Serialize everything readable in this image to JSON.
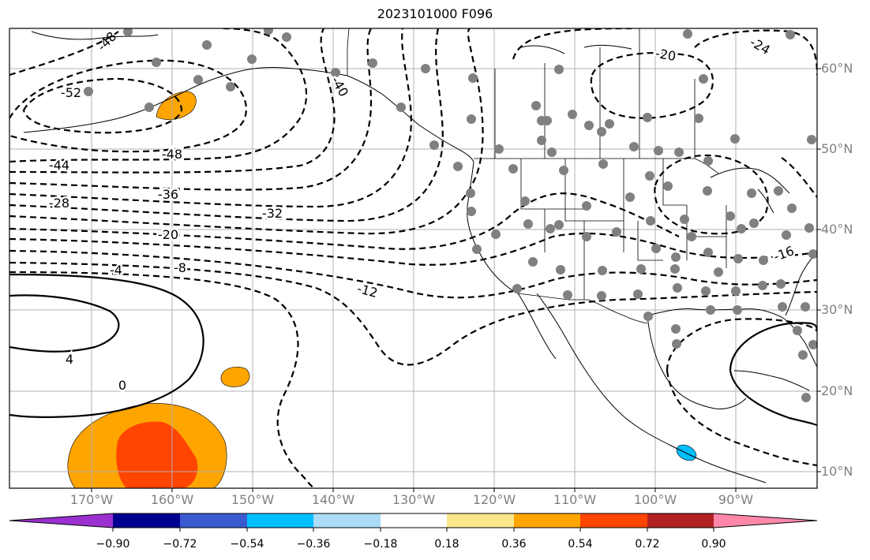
{
  "title": "2023101000 F096",
  "map": {
    "lat_labels": [
      "60°N",
      "50°N",
      "40°N",
      "30°N",
      "20°N",
      "10°N"
    ],
    "lon_labels": [
      "170°W",
      "160°W",
      "150°W",
      "140°W",
      "130°W",
      "120°W",
      "110°W",
      "100°W",
      "90°W"
    ],
    "contour_labels": [
      "-48",
      "-52",
      "-48",
      "-44",
      "-36",
      "-28",
      "-32",
      "-20",
      "-8",
      "-4",
      "-12",
      "-40",
      "-20",
      "-24",
      "4",
      "0",
      "-16"
    ],
    "station_color": "#808080",
    "contour_color": "#000000"
  },
  "colorbar": {
    "tick_labels": [
      "−0.90",
      "−0.72",
      "−0.54",
      "−0.36",
      "−0.18",
      "0.18",
      "0.36",
      "0.54",
      "0.72",
      "0.90"
    ],
    "colors": [
      "#9b30d0",
      "#000090",
      "#3a5bd0",
      "#00bfff",
      "#aadcf5",
      "#ffffff",
      "#fbe68a",
      "#ffa500",
      "#ff4500",
      "#b22222",
      "#ff88aa"
    ]
  }
}
